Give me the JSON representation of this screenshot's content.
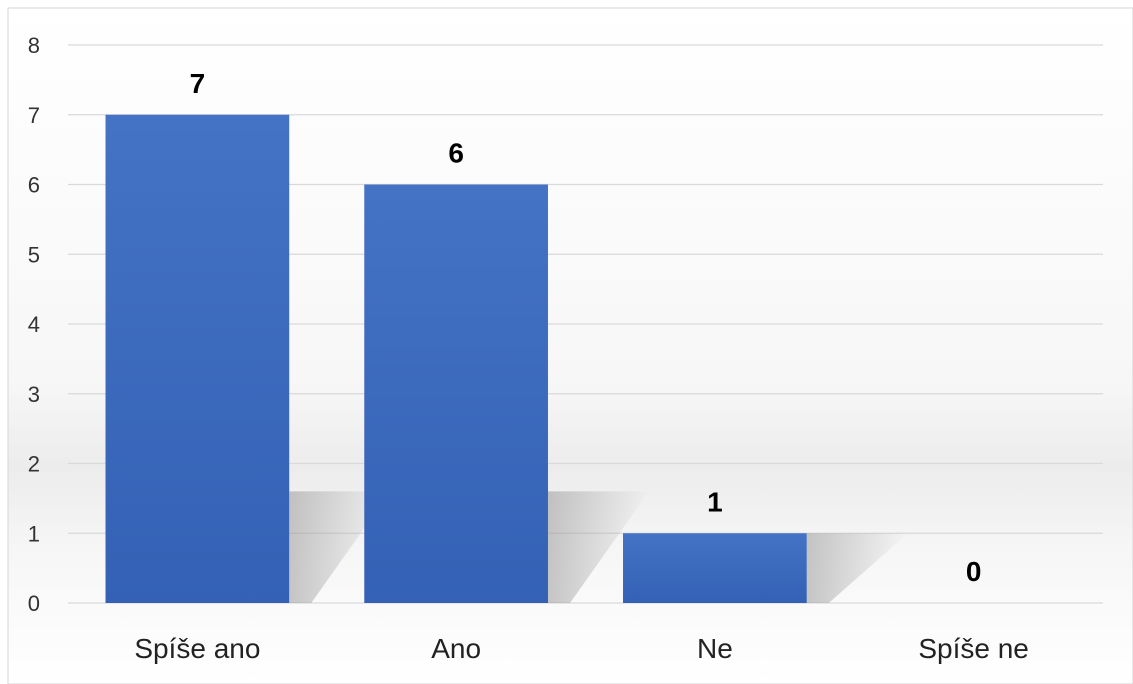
{
  "chart_data": {
    "type": "bar",
    "categories": [
      "Spíše ano",
      "Ano",
      "Ne",
      "Spíše ne"
    ],
    "values": [
      7,
      6,
      1,
      0
    ],
    "data_labels": [
      "7",
      "6",
      "1",
      "0"
    ],
    "title": "",
    "xlabel": "",
    "ylabel": "",
    "ylim": [
      0,
      8
    ],
    "yticks": [
      "0",
      "1",
      "2",
      "3",
      "4",
      "5",
      "6",
      "7",
      "8"
    ],
    "grid": true,
    "legend": "none",
    "bar_color": "#4472C4",
    "bar_color_dark": "#3461B5",
    "gridline_color": "#D9D9D9",
    "background_color": "#FFFFFF"
  }
}
